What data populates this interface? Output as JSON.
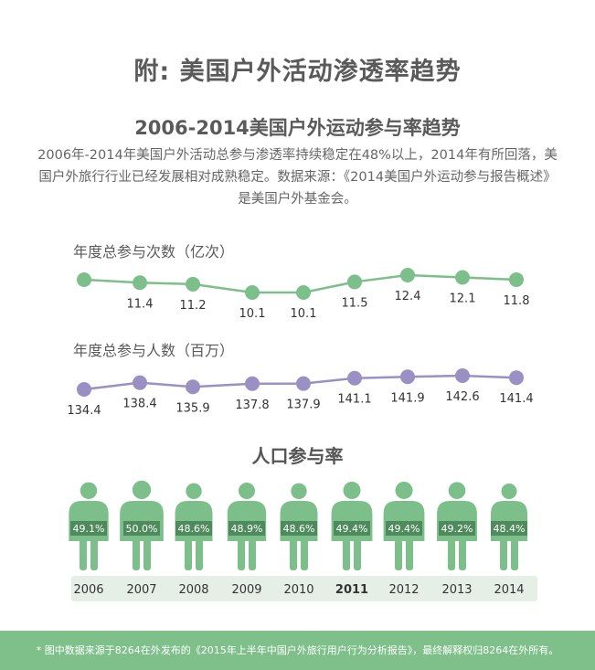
{
  "main_title": "附: 美国户外活动渗透率趋势",
  "sub_title": "2006-2014美国户外运动参与率趋势",
  "description": "2006年-2014年美国户外活动总参与渗透率持续稳定在48%以上，2014年有所回落，美国户外旅行行业已经发展相对成熟稳定。数据来源：《2014美国户外运动参与报告概述》是美国户外基金会。",
  "footer": "* 图中数据来源于8264在外发布的《2015年上半年中国户外旅行用户行为分析报告》，最终解释权归8264在外所有。",
  "colors": {
    "green": "#7dbf8a",
    "purple": "#9a90c4",
    "dark_green_label": "#4f8a5c",
    "year_bar": "#e6efe6",
    "footer_bg": "#7fbf8a"
  },
  "chart_data": [
    {
      "type": "line",
      "title": "年度总参与次数（亿次）",
      "x": [
        "2006",
        "2007",
        "2008",
        "2009",
        "2010",
        "2011",
        "2012",
        "2013",
        "2014"
      ],
      "values": [
        null,
        11.4,
        11.2,
        10.1,
        10.1,
        11.5,
        12.4,
        12.1,
        11.8
      ],
      "labels": [
        "",
        "11.4",
        "11.2",
        "10.1",
        "10.1",
        "11.5",
        "12.4",
        "12.1",
        "11.8"
      ],
      "color": "#7dbf8a"
    },
    {
      "type": "line",
      "title": "年度总参与人数（百万）",
      "x": [
        "2006",
        "2007",
        "2008",
        "2009",
        "2010",
        "2011",
        "2012",
        "2013",
        "2014"
      ],
      "values": [
        134.4,
        138.4,
        135.9,
        137.8,
        137.9,
        141.1,
        141.9,
        142.6,
        141.4
      ],
      "labels": [
        "134.4",
        "138.4",
        "135.9",
        "137.8",
        "137.9",
        "141.1",
        "141.9",
        "142.6",
        "141.4"
      ],
      "color": "#9a90c4"
    },
    {
      "type": "bar",
      "title": "人口参与率",
      "categories": [
        "2006",
        "2007",
        "2008",
        "2009",
        "2010",
        "2011",
        "2012",
        "2013",
        "2014"
      ],
      "values": [
        49.1,
        50.0,
        48.6,
        48.9,
        48.6,
        49.4,
        49.4,
        49.2,
        48.4
      ],
      "labels": [
        "49.1%",
        "50.0%",
        "48.6%",
        "48.9%",
        "48.6%",
        "49.4%",
        "49.4%",
        "49.2%",
        "48.4%"
      ],
      "bold_year": "2011"
    }
  ]
}
